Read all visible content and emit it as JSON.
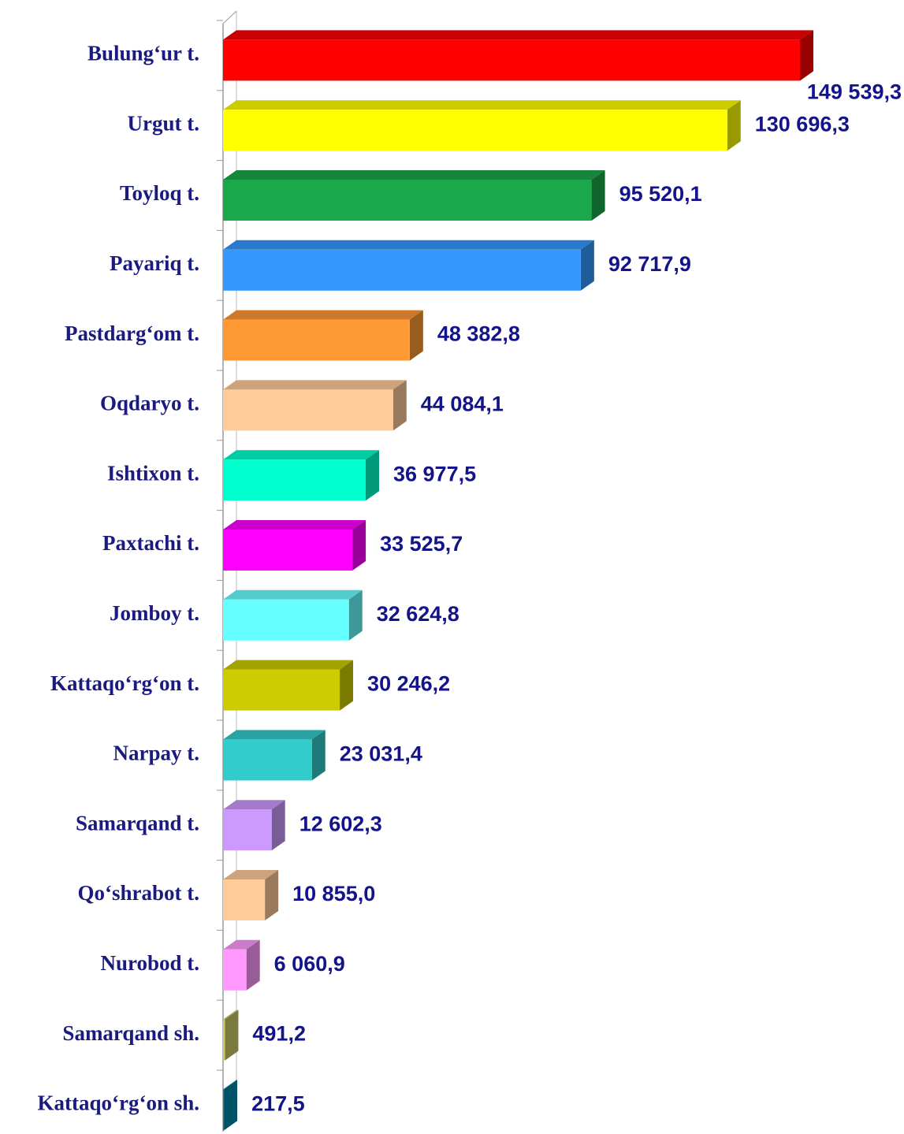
{
  "chart_data": {
    "type": "bar3d_horizontal",
    "categories": [
      "Bulung‘ur t.",
      "Urgut t.",
      "Toyloq t.",
      "Payariq t.",
      "Pastdarg‘om t.",
      "Oqdaryo t.",
      "Ishtixon t.",
      "Paxtachi t.",
      "Jomboy t.",
      "Kattaqo‘rg‘on t.",
      "Narpay t.",
      "Samarqand t.",
      "Qo‘shrabot t.",
      "Nurobod t.",
      "Samarqand sh.",
      "Kattaqo‘rg‘on sh."
    ],
    "values": [
      149539.3,
      130696.3,
      95520.1,
      92717.9,
      48382.8,
      44084.1,
      36977.5,
      33525.7,
      32624.8,
      30246.2,
      23031.4,
      12602.3,
      10855.0,
      6060.9,
      491.2,
      217.5
    ],
    "value_labels": [
      "149 539,3",
      "130 696,3",
      "95 520,1",
      "92 717,9",
      "48 382,8",
      "44 084,1",
      "36 977,5",
      "33 525,7",
      "32 624,8",
      "30 246,2",
      "23 031,4",
      "12 602,3",
      "10 855,0",
      "6 060,9",
      "491,2",
      "217,5"
    ],
    "colors": [
      "#ff0000",
      "#ffff00",
      "#1aa84a",
      "#3399ff",
      "#ff9933",
      "#ffcc99",
      "#00ffcc",
      "#ff00ff",
      "#66ffff",
      "#cccc00",
      "#33cccc",
      "#cc99ff",
      "#ffcc99",
      "#ff99ff",
      "#cccc66",
      "#0088aa"
    ]
  }
}
